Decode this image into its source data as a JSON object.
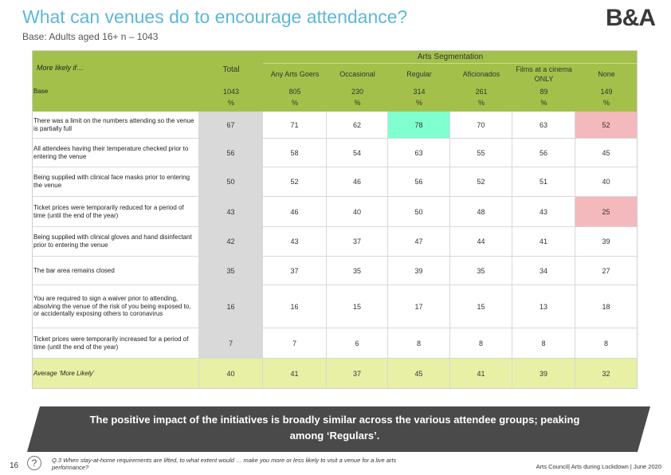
{
  "header": {
    "title": "What can venues do to encourage attendance?",
    "subtitle": "Base: Adults aged 16+ n – 1043",
    "logo": "B&A"
  },
  "table": {
    "corner_label": "More likely if…",
    "total_label": "Total",
    "group_label": "Arts Segmentation",
    "columns": [
      "Any Arts Goers",
      "Occasional",
      "Regular",
      "Aficionados",
      "Films at a cinema ONLY",
      "None"
    ],
    "base": {
      "label": "Base",
      "values": [
        1043,
        805,
        230,
        314,
        261,
        89,
        149
      ],
      "unit": "%"
    },
    "rows": [
      {
        "label": "There was a limit on the numbers attending so the venue is partially full",
        "values": [
          67,
          71,
          62,
          78,
          70,
          63,
          52
        ]
      },
      {
        "label": "All attendees having their temperature checked prior to entering the venue",
        "values": [
          56,
          58,
          54,
          63,
          55,
          56,
          45
        ]
      },
      {
        "label": "Being supplied with clinical face masks prior to entering the venue",
        "values": [
          50,
          52,
          46,
          56,
          52,
          51,
          40
        ]
      },
      {
        "label": "Ticket prices were temporarily reduced for a period of time (until the end of the year)",
        "values": [
          43,
          46,
          40,
          50,
          48,
          43,
          25
        ]
      },
      {
        "label": "Being supplied with clinical gloves and hand disinfectant prior to entering the venue",
        "values": [
          42,
          43,
          37,
          47,
          44,
          41,
          39
        ]
      },
      {
        "label": "The bar area remains closed",
        "values": [
          35,
          37,
          35,
          39,
          35,
          34,
          27
        ]
      },
      {
        "label": "You are required to sign a waiver prior to attending, absolving the venue of the risk of you being exposed to, or accidentally exposing others to coronavirus",
        "values": [
          16,
          16,
          15,
          17,
          15,
          13,
          18
        ]
      },
      {
        "label": "Ticket prices were temporarily increased for a period of time (until the end of the year)",
        "values": [
          7,
          7,
          6,
          8,
          8,
          8,
          8
        ]
      }
    ],
    "average": {
      "label": "Average ‘More Likely’",
      "values": [
        40,
        41,
        37,
        45,
        41,
        39,
        32
      ]
    }
  },
  "callout": "The positive impact of the initiatives is broadly similar across the various attendee groups; peaking among ‘Regulars’.",
  "footer": {
    "page": "16",
    "icon": "?",
    "question": "Q.3 When stay-at-home requirements are lifted, to what extent would … make you more or less likely to visit a venue for a live arts performance?",
    "source": "Arts Council| Arts during Lockdown | June 2020"
  }
}
